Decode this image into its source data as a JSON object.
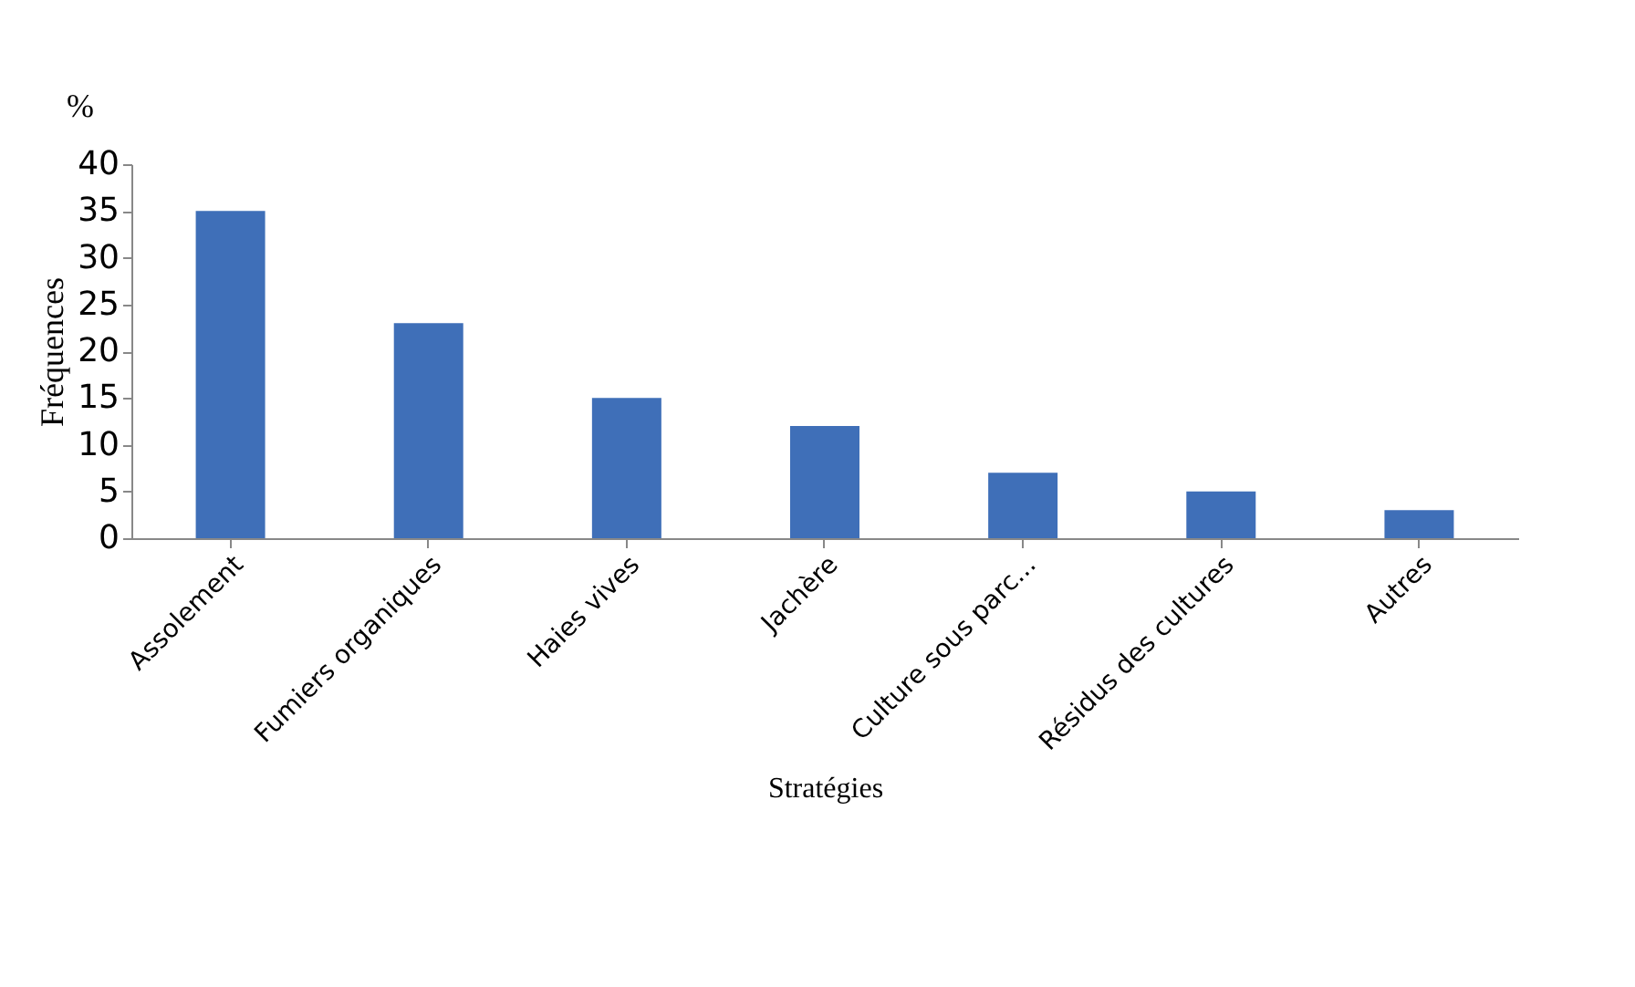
{
  "chart_data": {
    "type": "bar",
    "xlabel": "Stratégies",
    "ylabel": "Fréquences",
    "annotations": [
      "%"
    ],
    "categories": [
      "Assolement",
      "Fumiers organiques",
      "Haies vives",
      "Jachère",
      "Culture sous parc...",
      "Résidus des cultures",
      "Autres"
    ],
    "values": [
      35,
      23,
      15,
      12,
      7,
      5,
      3
    ],
    "color": "#3f6fb8",
    "ylim": [
      0,
      40
    ],
    "yticks": [
      0,
      5,
      10,
      15,
      20,
      25,
      30,
      35,
      40
    ],
    "grid": false
  }
}
